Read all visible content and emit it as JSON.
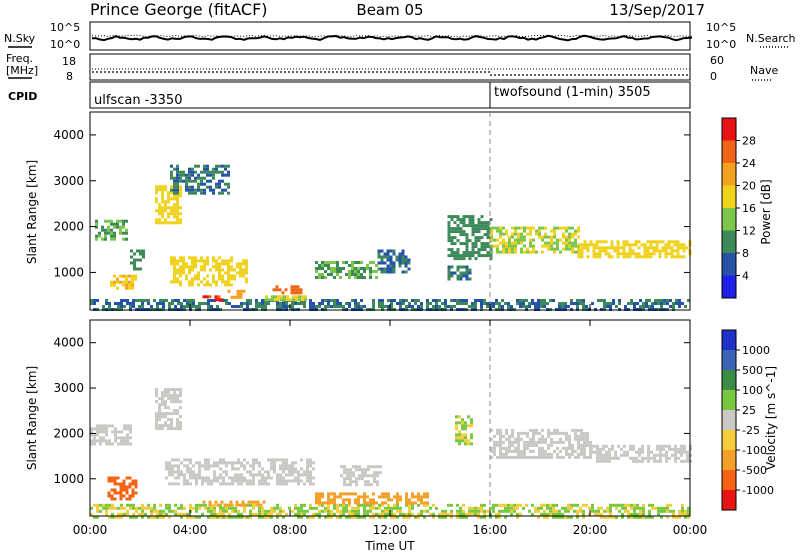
{
  "header": {
    "station": "Prince George (fitACF)",
    "beam": "Beam 05",
    "date": "13/Sep/2017"
  },
  "noise_panel": {
    "left_label": "N.Sky",
    "left_ticks": [
      "10^5",
      "10^0"
    ],
    "right_label": "N.Search",
    "right_ticks": [
      "10^5",
      "10^0"
    ]
  },
  "freq_panel": {
    "left_label_1": "Freq.",
    "left_label_2": "[MHz]",
    "left_ticks": [
      "18",
      "8"
    ],
    "right_label": "Nave",
    "right_ticks": [
      "60",
      "0"
    ]
  },
  "cpid_panel": {
    "label": "CPID",
    "mode_1": "ulfscan -3350",
    "mode_2": "twofsound (1-min) 3505",
    "switch_time_hours": 16
  },
  "chart_data": [
    {
      "type": "heatmap",
      "name": "power",
      "ylabel": "Slant Range [km]",
      "xlabel": "",
      "xlim_hours": [
        0,
        24
      ],
      "ylim": [
        180,
        4500
      ],
      "yticks": [
        "1000",
        "2000",
        "3000",
        "4000"
      ],
      "colorbar": {
        "label": "Power [dB]",
        "ticks": [
          "4",
          "8",
          "12",
          "16",
          "20",
          "24",
          "28"
        ],
        "colors": [
          "#1e22e8",
          "#2453a8",
          "#3c8a5a",
          "#7cc64c",
          "#f0d21c",
          "#f4a020",
          "#f06418",
          "#e81414"
        ]
      },
      "regions": [
        {
          "t": [
            0.0,
            24.0
          ],
          "r": [
            180,
            420
          ],
          "level": 8
        },
        {
          "t": [
            0.2,
            1.5
          ],
          "r": [
            1750,
            2150
          ],
          "level": 12
        },
        {
          "t": [
            0.8,
            1.8
          ],
          "r": [
            650,
            950
          ],
          "level": 20
        },
        {
          "t": [
            1.6,
            2.2
          ],
          "r": [
            1100,
            1500
          ],
          "level": 10
        },
        {
          "t": [
            2.6,
            3.6
          ],
          "r": [
            2050,
            2900
          ],
          "level": 18
        },
        {
          "t": [
            3.2,
            5.6
          ],
          "r": [
            2750,
            3350
          ],
          "level": 8
        },
        {
          "t": [
            3.2,
            6.3
          ],
          "r": [
            700,
            1350
          ],
          "level": 18
        },
        {
          "t": [
            4.5,
            5.3
          ],
          "r": [
            380,
            500
          ],
          "level": 28
        },
        {
          "t": [
            5.5,
            6.2
          ],
          "r": [
            480,
            620
          ],
          "level": 22
        },
        {
          "t": [
            7.0,
            8.6
          ],
          "r": [
            400,
            500
          ],
          "level": 16
        },
        {
          "t": [
            7.3,
            8.4
          ],
          "r": [
            560,
            720
          ],
          "level": 26
        },
        {
          "t": [
            9.0,
            11.5
          ],
          "r": [
            900,
            1250
          ],
          "level": 12
        },
        {
          "t": [
            11.5,
            12.8
          ],
          "r": [
            1000,
            1500
          ],
          "level": 8
        },
        {
          "t": [
            14.3,
            16.0
          ],
          "r": [
            1300,
            2250
          ],
          "level": 10
        },
        {
          "t": [
            14.3,
            15.2
          ],
          "r": [
            850,
            1150
          ],
          "level": 8
        },
        {
          "t": [
            16.0,
            19.5
          ],
          "r": [
            1450,
            2000
          ],
          "level": 16
        },
        {
          "t": [
            19.5,
            24.0
          ],
          "r": [
            1350,
            1700
          ],
          "level": 18
        }
      ]
    },
    {
      "type": "heatmap",
      "name": "velocity",
      "ylabel": "Slant Range [km]",
      "xlabel": "Time UT",
      "xlim_hours": [
        0,
        24
      ],
      "ylim": [
        180,
        4500
      ],
      "yticks": [
        "1000",
        "2000",
        "3000",
        "4000"
      ],
      "xticks": [
        "00:00",
        "04:00",
        "08:00",
        "12:00",
        "16:00",
        "20:00",
        "00:00"
      ],
      "colorbar": {
        "label": "Velocity [m s^-1]",
        "ticks": [
          "1000",
          "500",
          "100",
          "25",
          "-25",
          "-100",
          "-500",
          "-1000"
        ],
        "colors": [
          "#1e32c8",
          "#3c64b4",
          "#3c8c46",
          "#78c840",
          "#c8c8c4",
          "#f4cc3c",
          "#f4a028",
          "#f46414",
          "#e81414"
        ]
      },
      "regions": [
        {
          "t": [
            0.0,
            24.0
          ],
          "r": [
            180,
            450
          ],
          "level": 25
        },
        {
          "t": [
            0.0,
            1.6
          ],
          "r": [
            1800,
            2200
          ],
          "level": 0
        },
        {
          "t": [
            0.7,
            1.9
          ],
          "r": [
            550,
            1050
          ],
          "level": -500
        },
        {
          "t": [
            2.6,
            3.6
          ],
          "r": [
            2100,
            3000
          ],
          "level": 0
        },
        {
          "t": [
            3.0,
            9.0
          ],
          "r": [
            900,
            1450
          ],
          "level": 0
        },
        {
          "t": [
            4.5,
            7.0
          ],
          "r": [
            400,
            520
          ],
          "level": -100
        },
        {
          "t": [
            9.0,
            13.5
          ],
          "r": [
            500,
            700
          ],
          "level": -100
        },
        {
          "t": [
            10.0,
            11.6
          ],
          "r": [
            900,
            1300
          ],
          "level": 0
        },
        {
          "t": [
            14.6,
            15.3
          ],
          "r": [
            1800,
            2400
          ],
          "level": 60
        },
        {
          "t": [
            16.0,
            20.0
          ],
          "r": [
            1500,
            2100
          ],
          "level": 0
        },
        {
          "t": [
            20.0,
            24.0
          ],
          "r": [
            1400,
            1750
          ],
          "level": 0
        }
      ]
    }
  ]
}
